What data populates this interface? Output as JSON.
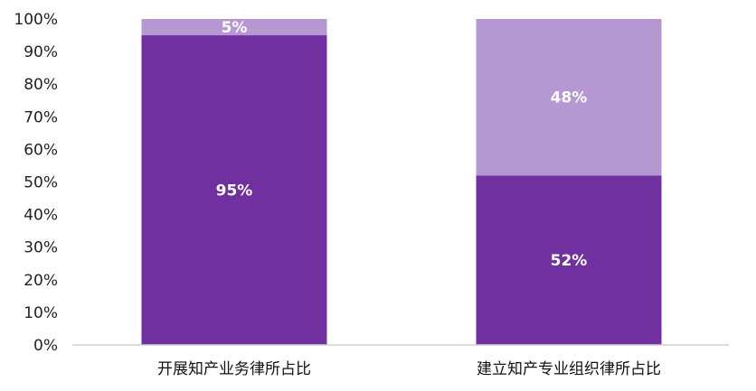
{
  "chart_data": {
    "type": "bar",
    "stacked": true,
    "percent": true,
    "categories": [
      "开展知产业务律所占比",
      "建立知产专业组织律所占比"
    ],
    "series": [
      {
        "values": [
          95,
          52
        ],
        "labels": [
          "95%",
          "52%"
        ],
        "color": "#7030a0"
      },
      {
        "values": [
          5,
          48
        ],
        "labels": [
          "5%",
          "48%"
        ],
        "color": "#b598d1"
      }
    ],
    "ylim": [
      0,
      100
    ],
    "yticks": [
      "0%",
      "10%",
      "20%",
      "30%",
      "40%",
      "50%",
      "60%",
      "70%",
      "80%",
      "90%",
      "100%"
    ],
    "grid": false,
    "legend": "none"
  }
}
